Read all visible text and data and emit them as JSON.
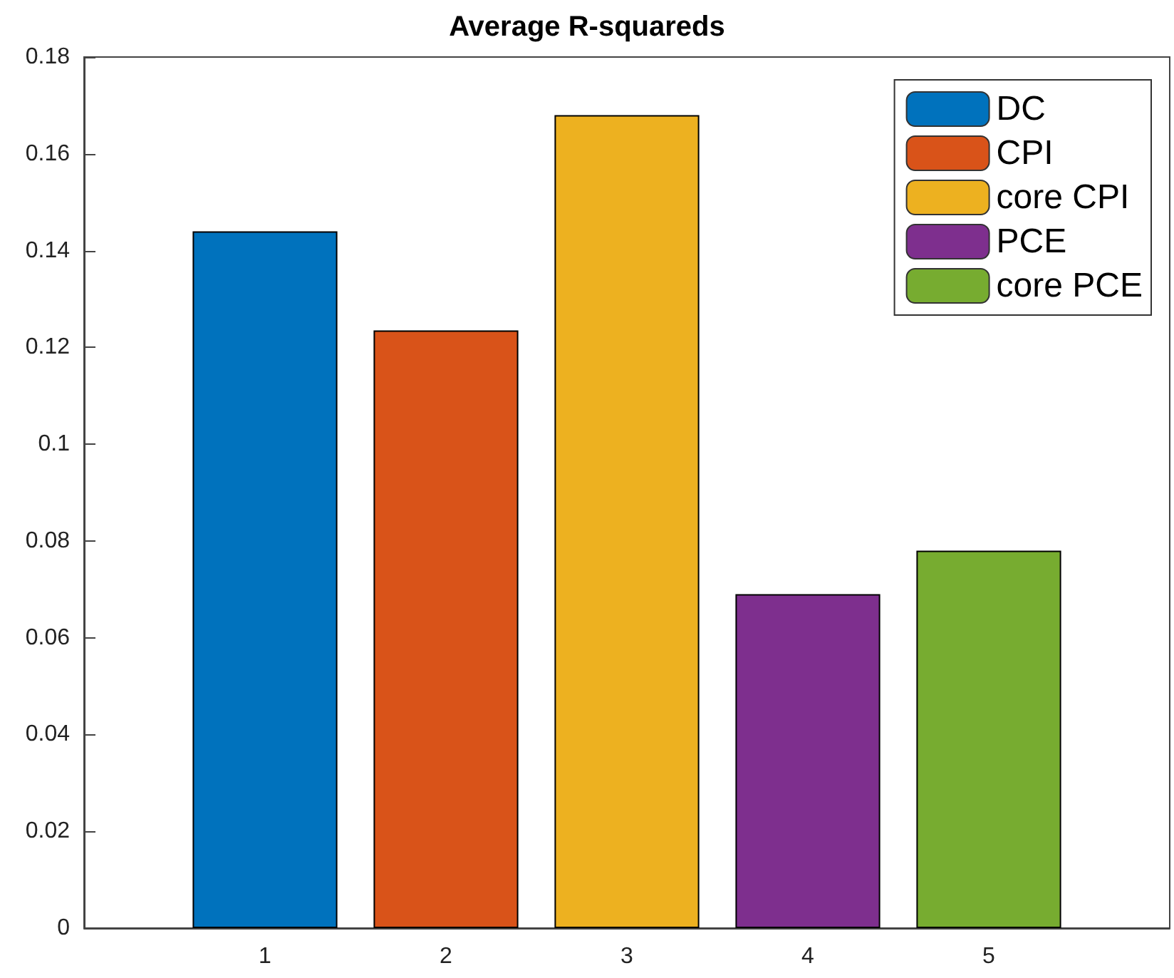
{
  "chart_data": {
    "type": "bar",
    "title": "Average R-squareds",
    "xlim": [
      0,
      6
    ],
    "xticks": [
      1,
      2,
      3,
      4,
      5
    ],
    "ylim": [
      0,
      0.18
    ],
    "yticks": [
      0,
      0.02,
      0.04,
      0.06,
      0.08,
      0.1,
      0.12,
      0.14,
      0.16,
      0.18
    ],
    "series": [
      {
        "name": "DC",
        "color": "#0072bd",
        "x": [
          1
        ],
        "values": [
          0.144
        ]
      },
      {
        "name": "CPI",
        "color": "#d95319",
        "x": [
          2
        ],
        "values": [
          0.1235
        ]
      },
      {
        "name": "core CPI",
        "color": "#edb120",
        "x": [
          3
        ],
        "values": [
          0.168
        ]
      },
      {
        "name": "PCE",
        "color": "#7e2f8e",
        "x": [
          4
        ],
        "values": [
          0.069
        ]
      },
      {
        "name": "core PCE",
        "color": "#77ac30",
        "x": [
          5
        ],
        "values": [
          0.078
        ]
      }
    ],
    "grid": false,
    "legend": "top right"
  }
}
